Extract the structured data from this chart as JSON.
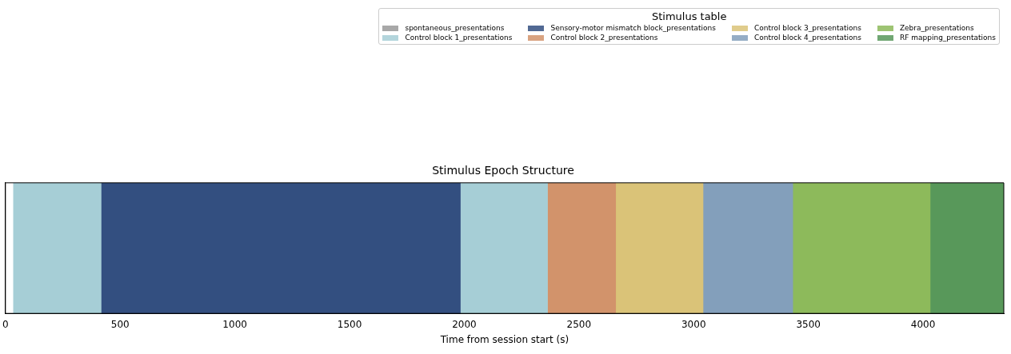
{
  "chart_data": {
    "type": "bar",
    "orientation": "horizontal",
    "title": "Stimulus Epoch Structure",
    "xlabel": "Time from session start (s)",
    "legend_title": "Stimulus table",
    "legend": "top right",
    "grid": false,
    "tick_labels": "x",
    "categories": [
      null
    ],
    "xlim": [
      0,
      4352
    ],
    "xticks": [
      0,
      500,
      1000,
      1500,
      2000,
      2500,
      3000,
      3500,
      4000
    ],
    "series": [
      {
        "name": "spontaneous_presentations",
        "color": "#999999",
        "values": [
          null
        ],
        "base": [
          null
        ]
      },
      {
        "name": "Control block 1_presentations",
        "color": "#a6ced6",
        "values": [
          382
        ],
        "base": [
          35
        ]
      },
      {
        "name": "Sensory-motor mismatch block_presentations",
        "color": "#334f80",
        "values": [
          1566
        ],
        "base": [
          417
        ]
      },
      {
        "color": "#a6ced6",
        "values": [
          380
        ],
        "base": [
          1983
        ]
      },
      {
        "name": "Control block 2_presentations",
        "color": "#d2936b",
        "values": [
          297
        ],
        "base": [
          2363
        ]
      },
      {
        "name": "Control block 3_presentations",
        "color": "#dac378",
        "values": [
          381
        ],
        "base": [
          2660
        ]
      },
      {
        "name": "Control block 4_presentations",
        "color": "#839fbb",
        "values": [
          391
        ],
        "base": [
          3041
        ]
      },
      {
        "name": "Zebra_presentations",
        "color": "#8dba5b",
        "values": [
          599
        ],
        "base": [
          3432
        ]
      },
      {
        "name": "RF mapping_presentations",
        "color": "#58985a",
        "values": [
          321
        ],
        "base": [
          4031
        ]
      }
    ]
  }
}
